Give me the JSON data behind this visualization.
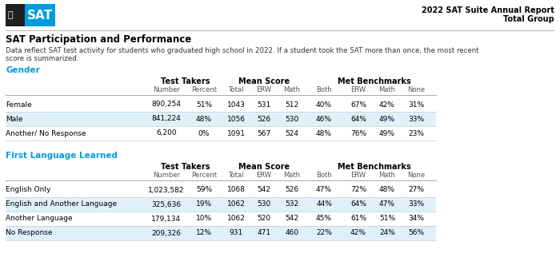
{
  "title_right_line1": "2022 SAT Suite Annual Report",
  "title_right_line2": "Total Group",
  "main_title": "SAT Participation and Performance",
  "subtitle1": "Data reflect SAT test activity for students who graduated high school in 2022. If a student took the SAT more than once, the most recent",
  "subtitle2": "score is summarized.",
  "section1_title": "Gender",
  "section2_title": "First Language Learned",
  "gender_rows": [
    {
      "label": "Female",
      "number": "890,254",
      "percent": "51%",
      "total": "1043",
      "erw": "531",
      "math": "512",
      "both": "40%",
      "mb_erw": "67%",
      "mb_math": "42%",
      "none": "31%",
      "highlight": false
    },
    {
      "label": "Male",
      "number": "841,224",
      "percent": "48%",
      "total": "1056",
      "erw": "526",
      "math": "530",
      "both": "46%",
      "mb_erw": "64%",
      "mb_math": "49%",
      "none": "33%",
      "highlight": true
    },
    {
      "label": "Another/ No Response",
      "number": "6,200",
      "percent": "0%",
      "total": "1091",
      "erw": "567",
      "math": "524",
      "both": "48%",
      "mb_erw": "76%",
      "mb_math": "49%",
      "none": "23%",
      "highlight": false
    }
  ],
  "language_rows": [
    {
      "label": "English Only",
      "number": "1,023,582",
      "percent": "59%",
      "total": "1068",
      "erw": "542",
      "math": "526",
      "both": "47%",
      "mb_erw": "72%",
      "mb_math": "48%",
      "none": "27%",
      "highlight": false
    },
    {
      "label": "English and Another Language",
      "number": "325,636",
      "percent": "19%",
      "total": "1062",
      "erw": "530",
      "math": "532",
      "both": "44%",
      "mb_erw": "64%",
      "mb_math": "47%",
      "none": "33%",
      "highlight": true
    },
    {
      "label": "Another Language",
      "number": "179,134",
      "percent": "10%",
      "total": "1062",
      "erw": "520",
      "math": "542",
      "both": "45%",
      "mb_erw": "61%",
      "mb_math": "51%",
      "none": "34%",
      "highlight": false
    },
    {
      "label": "No Response",
      "number": "209,326",
      "percent": "12%",
      "total": "931",
      "erw": "471",
      "math": "460",
      "both": "22%",
      "mb_erw": "42%",
      "mb_math": "24%",
      "none": "56%",
      "highlight": true
    }
  ],
  "sat_blue": "#009CDE",
  "sat_dark": "#222222",
  "section_color": "#009CDE",
  "highlight_color": "#dff0f9",
  "logo_bg": "#1f1f1f"
}
